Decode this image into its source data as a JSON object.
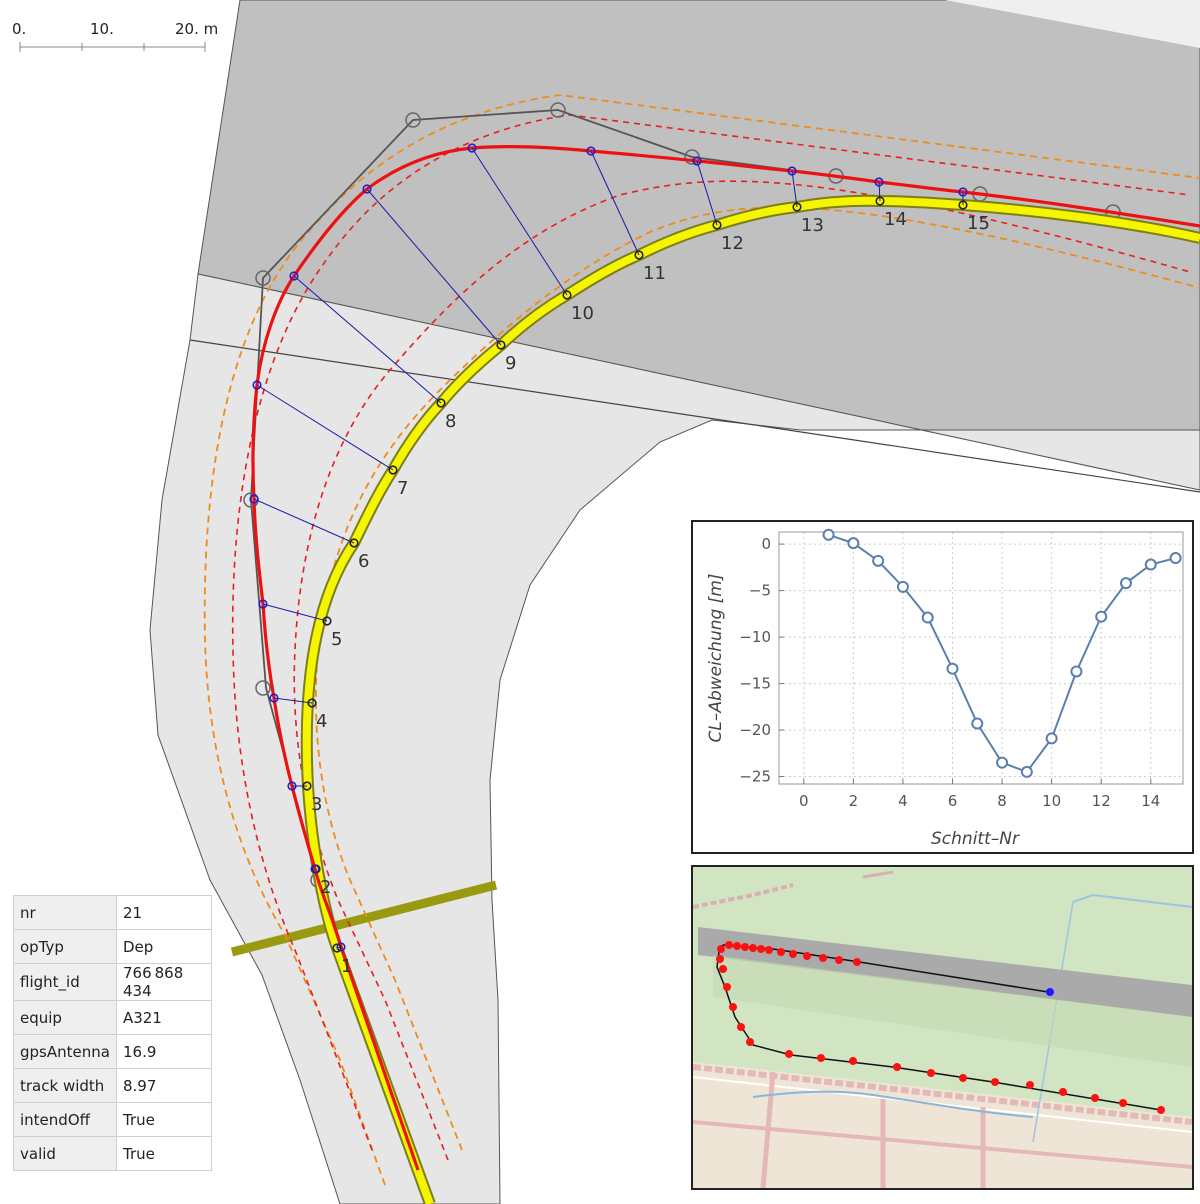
{
  "scalebar": {
    "labels": [
      "0.",
      "10.",
      "20. m"
    ]
  },
  "sections": [
    {
      "nr": "1",
      "cl": [
        337,
        948
      ],
      "track": [
        341,
        947
      ]
    },
    {
      "nr": "2",
      "cl": [
        316,
        869
      ],
      "track": [
        315,
        869
      ]
    },
    {
      "nr": "3",
      "cl": [
        307,
        786
      ],
      "track": [
        292,
        786
      ]
    },
    {
      "nr": "4",
      "cl": [
        312,
        703
      ],
      "track": [
        274,
        698
      ]
    },
    {
      "nr": "5",
      "cl": [
        327,
        621
      ],
      "track": [
        263,
        604
      ]
    },
    {
      "nr": "6",
      "cl": [
        354,
        543
      ],
      "track": [
        254,
        499
      ]
    },
    {
      "nr": "7",
      "cl": [
        393,
        470
      ],
      "track": [
        257,
        385
      ]
    },
    {
      "nr": "8",
      "cl": [
        441,
        403
      ],
      "track": [
        294,
        276
      ]
    },
    {
      "nr": "9",
      "cl": [
        501,
        345
      ],
      "track": [
        367,
        189
      ]
    },
    {
      "nr": "10",
      "cl": [
        567,
        295
      ],
      "track": [
        472,
        148
      ]
    },
    {
      "nr": "11",
      "cl": [
        639,
        255
      ],
      "track": [
        591,
        151
      ]
    },
    {
      "nr": "12",
      "cl": [
        717,
        225
      ],
      "track": [
        697,
        161
      ]
    },
    {
      "nr": "13",
      "cl": [
        797,
        207
      ],
      "track": [
        792,
        171
      ]
    },
    {
      "nr": "14",
      "cl": [
        880,
        201
      ],
      "track": [
        879,
        182
      ]
    },
    {
      "nr": "15",
      "cl": [
        963,
        205
      ],
      "track": [
        963,
        192
      ]
    }
  ],
  "chart_data": {
    "type": "line",
    "xlabel": "Schnitt–Nr",
    "ylabel": "CL–Abweichung [m]",
    "xlim": [
      -1,
      15.3
    ],
    "ylim": [
      -25.8,
      1.3
    ],
    "xticks": [
      0,
      2,
      4,
      6,
      8,
      10,
      12,
      14
    ],
    "xtick_labels": [
      "0",
      "2",
      "4",
      "6",
      "8",
      "10",
      "12",
      "14"
    ],
    "yticks": [
      0,
      -5,
      -10,
      -15,
      -20,
      -25
    ],
    "ytick_labels": [
      "0",
      "−5",
      "−10",
      "−15",
      "−20",
      "−25"
    ],
    "grid": true,
    "color": "#5a7fae",
    "x": [
      1,
      2,
      3,
      4,
      5,
      6,
      7,
      8,
      9,
      10,
      11,
      12,
      13,
      14,
      15
    ],
    "y": [
      1.0,
      0.1,
      -1.8,
      -4.6,
      -7.9,
      -13.4,
      -19.3,
      -23.5,
      -24.5,
      -20.9,
      -13.7,
      -7.8,
      -4.2,
      -2.2,
      -1.5
    ]
  },
  "info_table": [
    {
      "key": "nr",
      "value": "21"
    },
    {
      "key": "opTyp",
      "value": "Dep"
    },
    {
      "key": "flight_id",
      "value": "766 868 434"
    },
    {
      "key": "equip",
      "value": "A321"
    },
    {
      "key": "gpsAntenna",
      "value": "16.9"
    },
    {
      "key": "track width",
      "value": "8.97"
    },
    {
      "key": "intendOff",
      "value": "True"
    },
    {
      "key": "valid",
      "value": "True"
    }
  ]
}
